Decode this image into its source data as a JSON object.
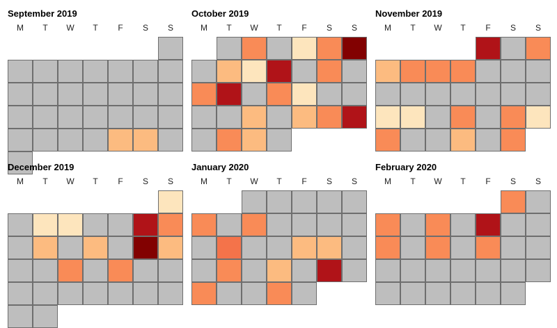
{
  "chart_data": [
    {
      "type": "heatmap",
      "title": "September 2019",
      "weekdays": [
        "M",
        "T",
        "W",
        "T",
        "F",
        "S",
        "S"
      ],
      "start_offset": 6,
      "levels": [
        0,
        0,
        0,
        0,
        0,
        0,
        0,
        0,
        0,
        0,
        0,
        0,
        0,
        0,
        0,
        0,
        0,
        0,
        0,
        0,
        0,
        0,
        0,
        0,
        0,
        0,
        2,
        2,
        0,
        0
      ]
    },
    {
      "type": "heatmap",
      "title": "October 2019",
      "weekdays": [
        "M",
        "T",
        "W",
        "T",
        "F",
        "S",
        "S"
      ],
      "start_offset": 1,
      "levels": [
        0,
        3,
        0,
        1,
        3,
        6,
        0,
        2,
        1,
        5,
        0,
        3,
        0,
        3,
        5,
        0,
        3,
        1,
        0,
        0,
        0,
        0,
        2,
        0,
        2,
        3,
        5,
        0,
        3,
        2,
        0
      ]
    },
    {
      "type": "heatmap",
      "title": "November 2019",
      "weekdays": [
        "M",
        "T",
        "W",
        "T",
        "F",
        "S",
        "S"
      ],
      "start_offset": 4,
      "levels": [
        5,
        0,
        3,
        2,
        3,
        3,
        3,
        0,
        0,
        0,
        0,
        0,
        0,
        0,
        0,
        0,
        0,
        1,
        1,
        0,
        3,
        0,
        3,
        1,
        3,
        0,
        0,
        2,
        0,
        3
      ]
    },
    {
      "type": "heatmap",
      "title": "December 2019",
      "weekdays": [
        "M",
        "T",
        "W",
        "T",
        "F",
        "S",
        "S"
      ],
      "start_offset": 6,
      "levels": [
        1,
        0,
        1,
        1,
        0,
        0,
        5,
        3,
        0,
        2,
        0,
        2,
        0,
        6,
        2,
        0,
        0,
        3,
        0,
        3,
        0,
        0,
        0,
        0,
        0,
        0,
        0,
        0,
        0,
        0,
        0
      ]
    },
    {
      "type": "heatmap",
      "title": "January 2020",
      "weekdays": [
        "M",
        "T",
        "W",
        "T",
        "F",
        "S",
        "S"
      ],
      "start_offset": 2,
      "levels": [
        0,
        0,
        0,
        0,
        0,
        3,
        0,
        3,
        0,
        0,
        0,
        0,
        0,
        4,
        0,
        0,
        2,
        2,
        0,
        0,
        3,
        0,
        2,
        0,
        5,
        0,
        3,
        0,
        0,
        3,
        0
      ]
    },
    {
      "type": "heatmap",
      "title": "February 2020",
      "weekdays": [
        "M",
        "T",
        "W",
        "T",
        "F",
        "S",
        "S"
      ],
      "start_offset": 5,
      "levels": [
        3,
        0,
        3,
        0,
        3,
        0,
        5,
        0,
        0,
        3,
        0,
        3,
        0,
        3,
        0,
        0,
        0,
        0,
        0,
        0,
        0,
        0,
        0,
        0,
        0,
        0,
        0,
        0,
        0
      ]
    }
  ],
  "colors": {
    "no_data": "#bebebe",
    "scale": [
      "#bebebe",
      "#fde5bd",
      "#fcbb80",
      "#f98b57",
      "#f4734a",
      "#b01318",
      "#820101"
    ]
  }
}
